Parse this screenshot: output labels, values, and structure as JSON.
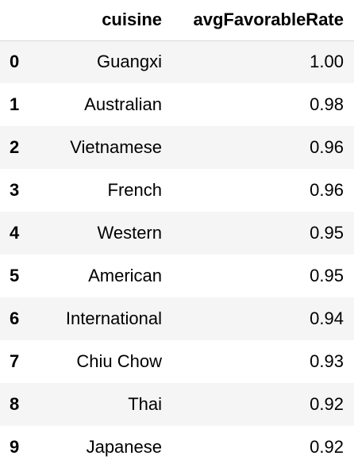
{
  "table": {
    "columns": [
      "cuisine",
      "avgFavorableRate"
    ],
    "rows": [
      {
        "index": "0",
        "cuisine": "Guangxi",
        "avgFavorableRate": "1.00"
      },
      {
        "index": "1",
        "cuisine": "Australian",
        "avgFavorableRate": "0.98"
      },
      {
        "index": "2",
        "cuisine": "Vietnamese",
        "avgFavorableRate": "0.96"
      },
      {
        "index": "3",
        "cuisine": "French",
        "avgFavorableRate": "0.96"
      },
      {
        "index": "4",
        "cuisine": "Western",
        "avgFavorableRate": "0.95"
      },
      {
        "index": "5",
        "cuisine": "American",
        "avgFavorableRate": "0.95"
      },
      {
        "index": "6",
        "cuisine": "International",
        "avgFavorableRate": "0.94"
      },
      {
        "index": "7",
        "cuisine": "Chiu Chow",
        "avgFavorableRate": "0.93"
      },
      {
        "index": "8",
        "cuisine": "Thai",
        "avgFavorableRate": "0.92"
      },
      {
        "index": "9",
        "cuisine": "Japanese",
        "avgFavorableRate": "0.92"
      }
    ]
  }
}
